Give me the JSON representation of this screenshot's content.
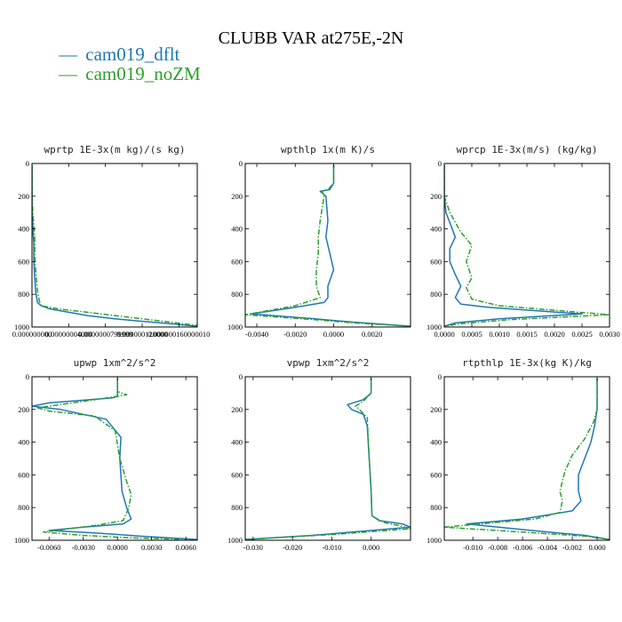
{
  "figure": {
    "title": "CLUBB VAR at275E,-2N",
    "legend": [
      {
        "marker": "—",
        "name": "cam019_dflt",
        "color": "#1f77b4"
      },
      {
        "marker": "—",
        "name": "cam019_noZM",
        "color": "#2ca02c"
      }
    ]
  },
  "chart_data": [
    {
      "type": "line",
      "title": "wprtp  1E-3x(m kg)/(s kg)",
      "xlim": [
        0.0,
        1.8e-07
      ],
      "ylim": [
        0,
        1000
      ],
      "xticks": [
        0.0,
        4e-08,
        8e-08,
        1.2e-07,
        1.6e-07
      ],
      "xtick_labels": [
        "0.000000000",
        "0.00000004000",
        "0.0000000799999",
        "0.000000120000",
        "0.000000160000010"
      ],
      "yticks": [
        0,
        200,
        400,
        600,
        800,
        1000
      ],
      "ytick_labels": [
        "0",
        "200",
        "400",
        "600",
        "800",
        "1000"
      ],
      "series": [
        {
          "name": "cam019_dflt",
          "color": "#1f77b4",
          "dash": "solid",
          "x": [
            0.0,
            0.0,
            0.0,
            1e-09,
            2e-09,
            2e-09,
            3e-09,
            4e-09,
            5e-09,
            6e-09,
            1e-08,
            2e-08,
            4e-08,
            6e-08,
            9e-08,
            1.2e-07,
            1.5e-07,
            1.8e-07
          ],
          "y": [
            10,
            200,
            300,
            400,
            500,
            600,
            700,
            780,
            820,
            850,
            870,
            890,
            910,
            930,
            950,
            965,
            980,
            995
          ]
        },
        {
          "name": "cam019_noZM",
          "color": "#2ca02c",
          "dash": "dashdot",
          "x": [
            0.0,
            0.0,
            1e-09,
            3e-09,
            3e-09,
            4e-09,
            5e-09,
            6e-09,
            8e-09,
            1e-08,
            3e-08,
            6e-08,
            9e-08,
            1.2e-07,
            1.5e-07,
            1.8e-07
          ],
          "y": [
            10,
            200,
            300,
            450,
            550,
            650,
            720,
            780,
            840,
            870,
            890,
            910,
            930,
            950,
            970,
            990
          ]
        }
      ]
    },
    {
      "type": "line",
      "title": "wpthlp  1x(m K)/s",
      "xlim": [
        -0.0046,
        0.004
      ],
      "ylim": [
        0,
        1000
      ],
      "xticks": [
        -0.004,
        -0.002,
        0.0,
        0.002
      ],
      "xtick_labels": [
        "-0.0040",
        "-0.0020",
        "0.0000",
        "0.0020"
      ],
      "yticks": [
        0,
        200,
        400,
        600,
        800,
        1000
      ],
      "ytick_labels": [
        "0",
        "200",
        "400",
        "600",
        "800",
        "1000"
      ],
      "series": [
        {
          "name": "cam019_dflt",
          "color": "#1f77b4",
          "dash": "solid",
          "x": [
            0.0,
            0.0,
            -0.0002,
            -0.0007,
            -0.0004,
            -0.0003,
            -0.0004,
            -0.0002,
            0.0,
            -0.0003,
            -0.0003,
            -0.0005,
            -0.002,
            -0.0043,
            -0.001,
            0.001,
            0.004
          ],
          "y": [
            10,
            120,
            160,
            170,
            200,
            350,
            450,
            550,
            650,
            750,
            820,
            850,
            880,
            920,
            950,
            970,
            995
          ]
        },
        {
          "name": "cam019_noZM",
          "color": "#2ca02c",
          "dash": "dashdot",
          "x": [
            0.0,
            0.0,
            -0.0003,
            -0.0006,
            -0.0005,
            -0.0007,
            -0.0008,
            -0.0008,
            -0.0009,
            -0.0009,
            -0.0007,
            -0.002,
            -0.0046,
            -0.001,
            0.001,
            0.004
          ],
          "y": [
            10,
            120,
            160,
            170,
            200,
            350,
            450,
            550,
            650,
            750,
            820,
            870,
            925,
            955,
            975,
            995
          ]
        }
      ]
    },
    {
      "type": "line",
      "title": "wprcp  1E-3x(m/s) (kg/kg)",
      "xlim": [
        0.0,
        0.003
      ],
      "ylim": [
        0,
        1000
      ],
      "xticks": [
        0.0,
        0.0005,
        0.001,
        0.0015,
        0.002,
        0.0025,
        0.003
      ],
      "xtick_labels": [
        "0.0000",
        "0.0005",
        "0.0010",
        "0.0015",
        "0.0020",
        "0.0025",
        "0.0030"
      ],
      "yticks": [
        0,
        200,
        400,
        600,
        800,
        1000
      ],
      "ytick_labels": [
        "0",
        "200",
        "400",
        "600",
        "800",
        "1000"
      ],
      "series": [
        {
          "name": "cam019_dflt",
          "color": "#1f77b4",
          "dash": "solid",
          "x": [
            0.0,
            0.0,
            3e-05,
            0.0002,
            0.0001,
            0.0001,
            0.0002,
            0.0003,
            0.0002,
            0.0003,
            0.0008,
            0.0025,
            0.001,
            0.0002,
            0.0
          ],
          "y": [
            10,
            200,
            300,
            450,
            520,
            600,
            680,
            750,
            820,
            860,
            880,
            920,
            950,
            975,
            995
          ]
        },
        {
          "name": "cam019_noZM",
          "color": "#2ca02c",
          "dash": "dashdot",
          "x": [
            0.0,
            0.0,
            0.0001,
            0.0003,
            0.0005,
            0.0004,
            0.0005,
            0.0004,
            0.0005,
            0.001,
            0.003,
            0.0012,
            0.0003,
            0.0
          ],
          "y": [
            10,
            200,
            300,
            420,
            500,
            600,
            700,
            760,
            830,
            870,
            925,
            955,
            980,
            995
          ]
        }
      ]
    },
    {
      "type": "line",
      "title": "upwp  1xm^2/s^2",
      "xlim": [
        -0.0075,
        0.007
      ],
      "ylim": [
        0,
        1000
      ],
      "xticks": [
        -0.006,
        -0.003,
        0.0,
        0.003,
        0.006
      ],
      "xtick_labels": [
        "-0.0060",
        "-0.0030",
        "0.0000",
        "0.0030",
        "0.0060"
      ],
      "yticks": [
        0,
        200,
        400,
        600,
        800,
        1000
      ],
      "ytick_labels": [
        "0",
        "200",
        "400",
        "600",
        "800",
        "1000"
      ],
      "series": [
        {
          "name": "cam019_dflt",
          "color": "#1f77b4",
          "dash": "solid",
          "x": [
            0.0,
            0.0,
            -0.0005,
            -0.006,
            -0.0075,
            -0.005,
            -0.001,
            0.0003,
            0.0002,
            0.0003,
            0.0004,
            0.0008,
            0.0012,
            0.0005,
            -0.003,
            -0.006,
            -0.002,
            0.002,
            0.007
          ],
          "y": [
            10,
            120,
            130,
            160,
            180,
            200,
            260,
            370,
            500,
            600,
            700,
            800,
            870,
            900,
            920,
            940,
            955,
            975,
            995
          ]
        },
        {
          "name": "cam019_noZM",
          "color": "#2ca02c",
          "dash": "dashdot",
          "x": [
            0.0,
            0.0,
            0.0008,
            -0.001,
            -0.007,
            -0.006,
            -0.002,
            -0.0002,
            0.0002,
            0.0008,
            0.0012,
            0.001,
            0.0005,
            -0.002,
            -0.0065,
            -0.003,
            0.001,
            0.006
          ],
          "y": [
            10,
            90,
            110,
            130,
            190,
            210,
            240,
            330,
            500,
            640,
            720,
            800,
            880,
            910,
            950,
            970,
            985,
            995
          ]
        }
      ]
    },
    {
      "type": "line",
      "title": "vpwp  1xm^2/s^2",
      "xlim": [
        -0.032,
        0.01
      ],
      "ylim": [
        0,
        1000
      ],
      "xticks": [
        -0.03,
        -0.02,
        -0.01,
        0.0
      ],
      "xtick_labels": [
        "-0.030",
        "-0.020",
        "-0.010",
        "0.000"
      ],
      "yticks": [
        0,
        200,
        400,
        600,
        800,
        1000
      ],
      "ytick_labels": [
        "0",
        "200",
        "400",
        "600",
        "800",
        "1000"
      ],
      "series": [
        {
          "name": "cam019_dflt",
          "color": "#1f77b4",
          "dash": "solid",
          "x": [
            0.0,
            0.0,
            -0.002,
            -0.006,
            -0.005,
            -0.002,
            -0.001,
            -0.0005,
            0.0,
            0.0002,
            0.002,
            0.008,
            0.01,
            0.0,
            -0.015,
            -0.032
          ],
          "y": [
            10,
            100,
            140,
            170,
            200,
            230,
            300,
            500,
            700,
            850,
            880,
            900,
            920,
            940,
            970,
            995
          ]
        },
        {
          "name": "cam019_noZM",
          "color": "#2ca02c",
          "dash": "dashdot",
          "x": [
            0.0,
            0.0,
            -0.002,
            -0.004,
            -0.003,
            -0.001,
            -0.0005,
            0.0,
            0.0002,
            0.003,
            0.007,
            0.01,
            -0.01,
            -0.032
          ],
          "y": [
            10,
            100,
            150,
            180,
            200,
            250,
            500,
            700,
            850,
            890,
            910,
            930,
            965,
            995
          ]
        }
      ]
    },
    {
      "type": "line",
      "title": "rtpthlp  1E-3x(kg K)/kg",
      "xlim": [
        -0.0123,
        0.001
      ],
      "ylim": [
        0,
        1000
      ],
      "xticks": [
        -0.01,
        -0.008,
        -0.006,
        -0.004,
        -0.002,
        0.0
      ],
      "xtick_labels": [
        "-0.010",
        "-0.008",
        "-0.006",
        "-0.004",
        "-0.002",
        "0.000"
      ],
      "yticks": [
        0,
        200,
        400,
        600,
        800,
        1000
      ],
      "ytick_labels": [
        "0",
        "200",
        "400",
        "600",
        "800",
        "1000"
      ],
      "series": [
        {
          "name": "cam019_dflt",
          "color": "#1f77b4",
          "dash": "solid",
          "x": [
            0.0,
            0.0,
            -0.0002,
            -0.0005,
            -0.001,
            -0.0015,
            -0.0015,
            -0.0013,
            -0.002,
            -0.006,
            -0.0105,
            -0.006,
            -0.001,
            0.001
          ],
          "y": [
            10,
            200,
            300,
            400,
            500,
            600,
            700,
            760,
            820,
            870,
            900,
            935,
            970,
            995
          ]
        },
        {
          "name": "cam019_noZM",
          "color": "#2ca02c",
          "dash": "dashdot",
          "x": [
            0.0,
            0.0,
            -0.0003,
            -0.001,
            -0.002,
            -0.0026,
            -0.003,
            -0.0028,
            -0.003,
            -0.005,
            -0.0123,
            -0.006,
            -0.001,
            0.001
          ],
          "y": [
            10,
            200,
            280,
            380,
            480,
            580,
            700,
            760,
            830,
            870,
            920,
            950,
            975,
            995
          ]
        }
      ]
    }
  ]
}
